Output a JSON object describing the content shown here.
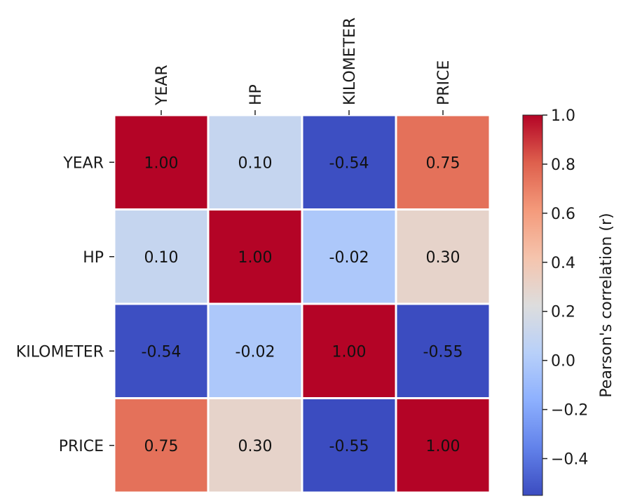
{
  "chart_data": {
    "type": "heatmap",
    "row_labels": [
      "YEAR",
      "HP",
      "KILOMETER",
      "PRICE"
    ],
    "col_labels": [
      "YEAR",
      "HP",
      "KILOMETER",
      "PRICE"
    ],
    "values": [
      [
        1.0,
        0.1,
        -0.54,
        0.75
      ],
      [
        0.1,
        1.0,
        -0.02,
        0.3
      ],
      [
        -0.54,
        -0.02,
        1.0,
        -0.55
      ],
      [
        0.75,
        0.3,
        -0.55,
        1.0
      ]
    ],
    "annotations": [
      [
        "1.00",
        "0.10",
        "-0.54",
        "0.75"
      ],
      [
        "0.10",
        "1.00",
        "-0.02",
        "0.30"
      ],
      [
        "-0.54",
        "-0.02",
        "1.00",
        "-0.55"
      ],
      [
        "0.75",
        "0.30",
        "-0.55",
        "1.00"
      ]
    ],
    "colormap": "coolwarm",
    "color_range": [
      -0.55,
      1.0
    ],
    "colorbar": {
      "label": "Pearson's correlation (r)",
      "ticks": [
        1.0,
        0.8,
        0.6,
        0.4,
        0.2,
        0.0,
        -0.2,
        -0.4
      ],
      "tick_labels": [
        "1.0",
        "0.8",
        "0.6",
        "0.4",
        "0.2",
        "0.0",
        "−0.2",
        "−0.4"
      ],
      "placement": "right"
    },
    "x_tick_position": "top",
    "grid_line_color": "#ffffff"
  }
}
